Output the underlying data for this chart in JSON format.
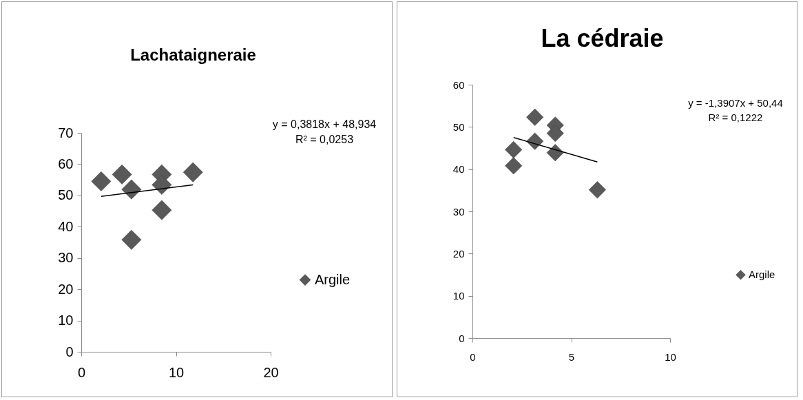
{
  "chart_data": [
    {
      "type": "scatter",
      "title": "Lachataigneraie",
      "xlim": [
        0,
        20
      ],
      "xticks": [
        0,
        10,
        20
      ],
      "ylim": [
        0,
        70
      ],
      "yticks": [
        0,
        10,
        20,
        30,
        40,
        50,
        60,
        70
      ],
      "grid": false,
      "legend": "right",
      "annotations": [
        "y = 0,3818x + 48,934",
        "R² = 0,0253"
      ],
      "series": [
        {
          "name": "Argile",
          "marker": "diamond",
          "color": "#595959",
          "x": [
            2.1,
            4.3,
            5.3,
            5.3,
            8.5,
            8.5,
            8.5,
            11.8
          ],
          "values": [
            54.5,
            56.7,
            51.9,
            35.8,
            56.7,
            53.4,
            45.3,
            57.4
          ]
        },
        {
          "type": "line",
          "color": "#000000",
          "x": [
            2.1,
            11.8
          ],
          "values": [
            49.7,
            53.4
          ]
        }
      ]
    },
    {
      "type": "scatter",
      "title": "La cédraie",
      "xlim": [
        0,
        10
      ],
      "xticks": [
        0,
        5,
        10
      ],
      "ylim": [
        0,
        60
      ],
      "yticks": [
        0,
        10,
        20,
        30,
        40,
        50,
        60
      ],
      "grid": false,
      "legend": "right",
      "annotations": [
        "y = -1,3907x + 50,44",
        "R² = 0,1222"
      ],
      "series": [
        {
          "name": "Argile",
          "marker": "diamond",
          "color": "#595959",
          "x": [
            2.08,
            2.08,
            3.16,
            3.16,
            4.19,
            4.19,
            4.19,
            6.32
          ],
          "values": [
            44.6,
            40.8,
            52.3,
            46.6,
            50.4,
            48.5,
            43.9,
            35.1
          ]
        },
        {
          "type": "line",
          "color": "#000000",
          "x": [
            2.08,
            6.32
          ],
          "values": [
            47.5,
            41.7
          ]
        }
      ]
    }
  ]
}
